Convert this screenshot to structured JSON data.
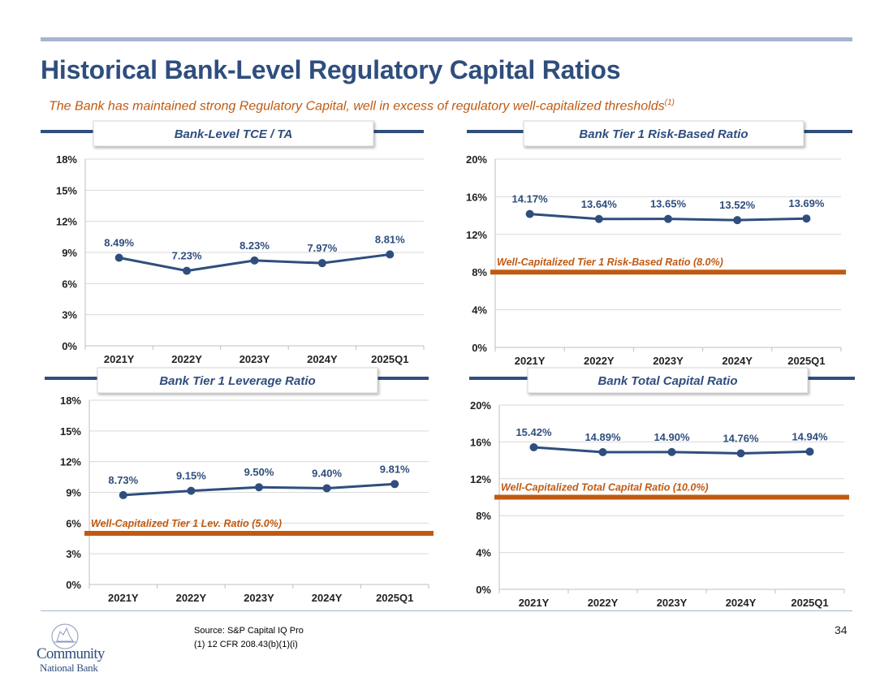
{
  "header": {
    "title": "Historical Bank-Level Regulatory Capital Ratios",
    "subtitle": "The Bank has maintained strong Regulatory Capital, well in excess of regulatory well-capitalized thresholds",
    "subtitle_sup": "(1)"
  },
  "footer": {
    "source": "Source: S&P Capital IQ Pro",
    "note": "(1) 12 CFR 208.43(b)(1)(i)",
    "page_number": "34",
    "logo_line1": "Community",
    "logo_line2": "National Bank"
  },
  "colors": {
    "title": "#2f4e7d",
    "line": "#2f4e7d",
    "threshold": "#c05a12",
    "rule": "#a6b4cf"
  },
  "chart_data": [
    {
      "type": "line",
      "title": "Bank-Level TCE / TA",
      "categories": [
        "2021Y",
        "2022Y",
        "2023Y",
        "2024Y",
        "2025Q1"
      ],
      "values": [
        8.49,
        7.23,
        8.23,
        7.97,
        8.81
      ],
      "data_labels": [
        "8.49%",
        "7.23%",
        "8.23%",
        "7.97%",
        "8.81%"
      ],
      "ylim": [
        0,
        18
      ],
      "yticks": [
        0,
        3,
        6,
        9,
        12,
        15,
        18
      ],
      "ytick_labels": [
        "0%",
        "3%",
        "6%",
        "9%",
        "12%",
        "15%",
        "18%"
      ],
      "grid": true,
      "threshold": null
    },
    {
      "type": "line",
      "title": "Bank Tier 1 Risk-Based Ratio",
      "categories": [
        "2021Y",
        "2022Y",
        "2023Y",
        "2024Y",
        "2025Q1"
      ],
      "values": [
        14.17,
        13.64,
        13.65,
        13.52,
        13.69
      ],
      "data_labels": [
        "14.17%",
        "13.64%",
        "13.65%",
        "13.52%",
        "13.69%"
      ],
      "ylim": [
        0,
        20
      ],
      "yticks": [
        0,
        4,
        8,
        12,
        16,
        20
      ],
      "ytick_labels": [
        "0%",
        "4%",
        "8%",
        "12%",
        "16%",
        "20%"
      ],
      "grid": true,
      "threshold": {
        "value": 8.0,
        "label": "Well-Capitalized Tier 1 Risk-Based Ratio (8.0%)"
      }
    },
    {
      "type": "line",
      "title": "Bank Tier 1 Leverage Ratio",
      "categories": [
        "2021Y",
        "2022Y",
        "2023Y",
        "2024Y",
        "2025Q1"
      ],
      "values": [
        8.73,
        9.15,
        9.5,
        9.4,
        9.81
      ],
      "data_labels": [
        "8.73%",
        "9.15%",
        "9.50%",
        "9.40%",
        "9.81%"
      ],
      "ylim": [
        0,
        18
      ],
      "yticks": [
        0,
        3,
        6,
        9,
        12,
        15,
        18
      ],
      "ytick_labels": [
        "0%",
        "3%",
        "6%",
        "9%",
        "12%",
        "15%",
        "18%"
      ],
      "grid": true,
      "threshold": {
        "value": 5.0,
        "label": "Well-Capitalized Tier 1 Lev. Ratio (5.0%)"
      }
    },
    {
      "type": "line",
      "title": "Bank Total Capital Ratio",
      "categories": [
        "2021Y",
        "2022Y",
        "2023Y",
        "2024Y",
        "2025Q1"
      ],
      "values": [
        15.42,
        14.89,
        14.9,
        14.76,
        14.94
      ],
      "data_labels": [
        "15.42%",
        "14.89%",
        "14.90%",
        "14.76%",
        "14.94%"
      ],
      "ylim": [
        0,
        20
      ],
      "yticks": [
        0,
        4,
        8,
        12,
        16,
        20
      ],
      "ytick_labels": [
        "0%",
        "4%",
        "8%",
        "12%",
        "16%",
        "20%"
      ],
      "grid": true,
      "threshold": {
        "value": 10.0,
        "label": "Well-Capitalized Total Capital Ratio (10.0%)"
      }
    }
  ]
}
